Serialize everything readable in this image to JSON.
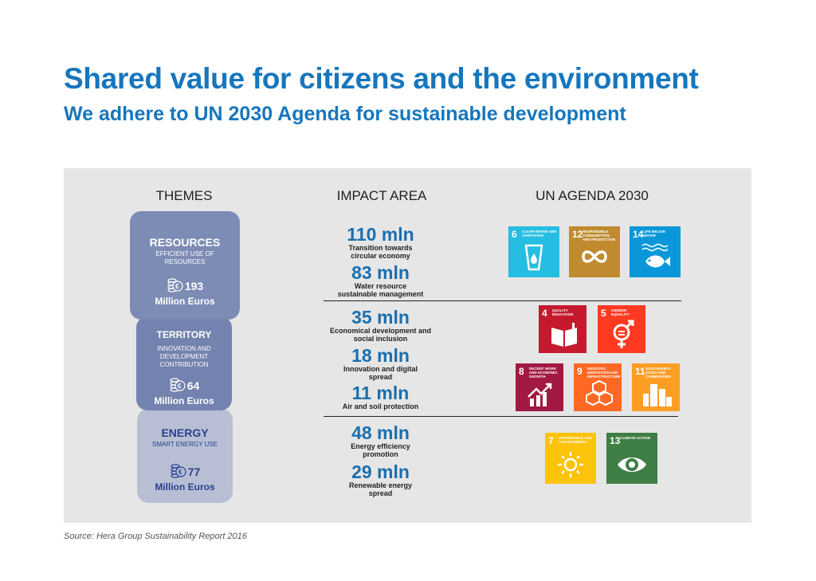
{
  "title": "Shared value for citizens and the environment",
  "subtitle": "We adhere to UN 2030 Agenda for sustainable development",
  "columns": {
    "themes": "THEMES",
    "impact": "IMPACT AREA",
    "agenda": "UN AGENDA 2030"
  },
  "themes": [
    {
      "name": "RESOURCES",
      "desc": "EFFICIENT USE OF RESOURCES",
      "amount": "193",
      "unit": "Million Euros"
    },
    {
      "name": "TERRITORY",
      "desc": "INNOVATION AND DEVELOPMENT CONTRIBUTION",
      "amount": "64",
      "unit": "Million Euros"
    },
    {
      "name": "ENERGY",
      "desc": "SMART ENERGY USE",
      "amount": "77",
      "unit": "Million Euros"
    }
  ],
  "impacts": [
    {
      "value": "110 mln",
      "label": "Transition towards circular economy"
    },
    {
      "value": "83 mln",
      "label": "Water resource sustainable management"
    },
    {
      "value": "35 mln",
      "label": "Economical development and social inclusion"
    },
    {
      "value": "18 mln",
      "label": "Innovation and digital spread"
    },
    {
      "value": "11 mln",
      "label": "Air and soil protection"
    },
    {
      "value": "48 mln",
      "label": "Energy efficiency promotion"
    },
    {
      "value": "29 mln",
      "label": "Renewable energy spread"
    }
  ],
  "sdgs": [
    {
      "num": "6",
      "text": "CLEAN WATER AND SANITATION",
      "color": "#26bde2",
      "icon": "water-glass-icon"
    },
    {
      "num": "12",
      "text": "RESPONSIBLE CONSUMPTION AND PRODUCTION",
      "color": "#bf8b2e",
      "icon": "infinity-icon"
    },
    {
      "num": "14",
      "text": "LIFE BELOW WATER",
      "color": "#0a97d9",
      "icon": "fish-icon"
    },
    {
      "num": "4",
      "text": "QUALITY EDUCATION",
      "color": "#c5192d",
      "icon": "book-icon"
    },
    {
      "num": "5",
      "text": "GENDER EQUALITY",
      "color": "#ff3a21",
      "icon": "gender-icon"
    },
    {
      "num": "8",
      "text": "DECENT WORK AND ECONOMIC GROWTH",
      "color": "#a21942",
      "icon": "growth-chart-icon"
    },
    {
      "num": "9",
      "text": "INDUSTRY, INNOVATION AND INFRASTRUCTURE",
      "color": "#fd6925",
      "icon": "cubes-icon"
    },
    {
      "num": "11",
      "text": "SUSTAINABLE CITIES AND COMMUNITIES",
      "color": "#fd9d24",
      "icon": "buildings-icon"
    },
    {
      "num": "7",
      "text": "AFFORDABLE AND CLEAN ENERGY",
      "color": "#fcc30b",
      "icon": "sun-icon"
    },
    {
      "num": "13",
      "text": "CLIMATE ACTION",
      "color": "#3f7e44",
      "icon": "eye-globe-icon"
    }
  ],
  "source": "Source: Hera Group Sustainability Report 2016"
}
